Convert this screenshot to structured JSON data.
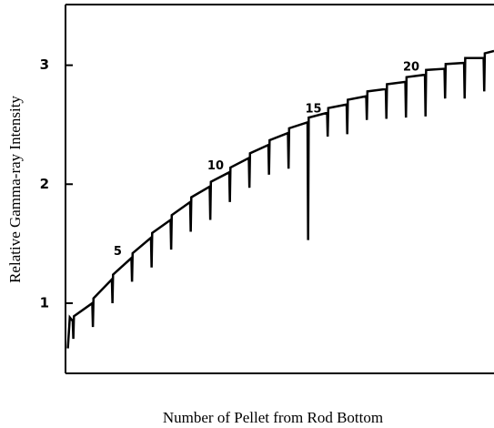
{
  "chart_data": {
    "type": "line",
    "xlabel": "Number of Pellet from Rod Bottom",
    "ylabel": "Relative Gamma-ray Intensity",
    "xlim": [
      2.63,
      24.53
    ],
    "ylim": [
      0.41,
      3.51
    ],
    "yticks": [
      1,
      2,
      3
    ],
    "series": [
      {
        "color": "#000000",
        "x": [
          2.75,
          2.85,
          3,
          3.03,
          3.06,
          4,
          4.03,
          4.06,
          5,
          5.03,
          5.06,
          6,
          6.03,
          6.06,
          7,
          7.03,
          7.06,
          8,
          8.03,
          8.06,
          9,
          9.03,
          9.06,
          10,
          10.03,
          10.06,
          11,
          11.03,
          11.06,
          12,
          12.03,
          12.06,
          13,
          13.03,
          13.06,
          14,
          14.03,
          14.06,
          15,
          15.03,
          15.06,
          16,
          16.03,
          16.06,
          17,
          17.03,
          17.06,
          18,
          18.03,
          18.06,
          19,
          19.03,
          19.06,
          20,
          20.03,
          20.06,
          21,
          21.03,
          21.06,
          22,
          22.03,
          22.06,
          23,
          23.03,
          23.06,
          24,
          24.03,
          24.06,
          24.53
        ],
        "values": [
          0.62,
          0.88,
          0.85,
          0.7,
          0.89,
          1.0,
          0.8,
          1.04,
          1.2,
          1.0,
          1.24,
          1.38,
          1.18,
          1.42,
          1.55,
          1.3,
          1.59,
          1.7,
          1.45,
          1.74,
          1.85,
          1.6,
          1.89,
          1.98,
          1.7,
          2.02,
          2.1,
          1.85,
          2.14,
          2.22,
          1.97,
          2.26,
          2.33,
          2.08,
          2.37,
          2.43,
          2.13,
          2.47,
          2.52,
          1.53,
          2.56,
          2.6,
          2.4,
          2.64,
          2.67,
          2.42,
          2.71,
          2.74,
          2.54,
          2.78,
          2.8,
          2.55,
          2.84,
          2.86,
          2.56,
          2.9,
          2.92,
          2.57,
          2.96,
          2.97,
          2.72,
          3.01,
          3.02,
          2.72,
          3.06,
          3.06,
          2.78,
          3.1,
          3.12
        ]
      }
    ],
    "annotations": [
      {
        "text": "5",
        "x": 5.3,
        "y": 1.43
      },
      {
        "text": "10",
        "x": 10.3,
        "y": 2.15
      },
      {
        "text": "15",
        "x": 15.3,
        "y": 2.63
      },
      {
        "text": "20",
        "x": 20.3,
        "y": 2.98
      }
    ]
  }
}
